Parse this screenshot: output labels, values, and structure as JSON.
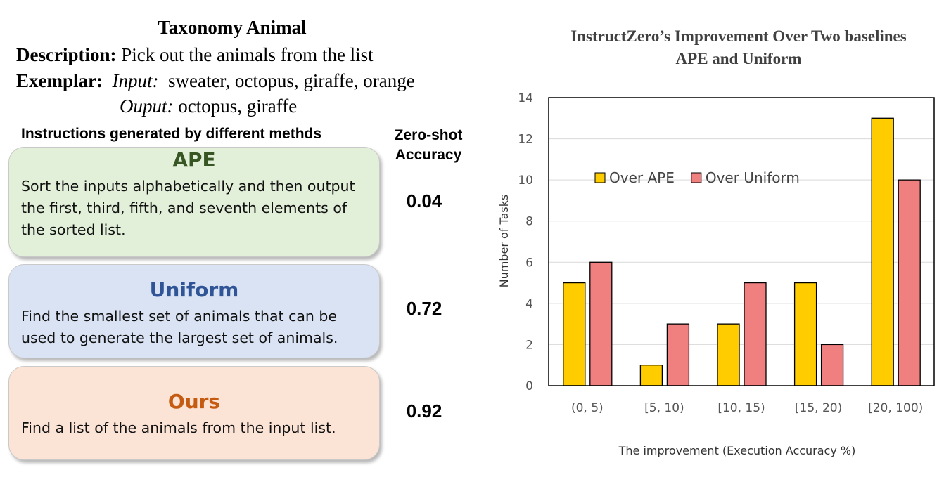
{
  "task": {
    "title": "Taxonomy Animal",
    "description_label": "Description:",
    "description": "Pick out the animals from the list",
    "exemplar_label": "Exemplar:",
    "input_label": "Input:",
    "input": "sweater, octopus, giraffe, orange",
    "output_label": "Ouput:",
    "output": "octopus, giraffe"
  },
  "headers": {
    "instructions": "Instructions generated by different methds",
    "accuracy_line1": "Zero-shot",
    "accuracy_line2": "Accuracy"
  },
  "methods": [
    {
      "name": "APE",
      "instruction": "Sort the inputs alphabetically and then output the first, third, fifth, and seventh elements of the sorted list.",
      "accuracy": "0.04",
      "color": "#375623",
      "background": "#e2efd9"
    },
    {
      "name": "Uniform",
      "instruction": "Find the smallest set of animals that can be used to generate the largest set of animals.",
      "accuracy": "0.72",
      "color": "#2f5597",
      "background": "#dae3f3"
    },
    {
      "name": "Ours",
      "instruction": "Find a list of the animals from the input list.",
      "accuracy": "0.92",
      "color": "#c55a11",
      "background": "#fbe3d6"
    }
  ],
  "chart_data": {
    "type": "bar",
    "title_line1": "InstructZero’s Improvement Over Two baselines",
    "title_line2": "APE and Uniform",
    "xlabel": "The improvement (Execution Accuracy %)",
    "ylabel": "Number of Tasks",
    "categories": [
      "(0, 5)",
      "[5, 10)",
      "[10, 15)",
      "[15, 20)",
      "[20, 100)"
    ],
    "series": [
      {
        "name": "Over APE",
        "values": [
          5,
          1,
          3,
          5,
          13
        ],
        "color": "#ffcc00"
      },
      {
        "name": "Over Uniform",
        "values": [
          6,
          3,
          5,
          2,
          10
        ],
        "color": "#f08080"
      }
    ],
    "ylim": [
      0,
      14
    ],
    "yticks": [
      0,
      2,
      4,
      6,
      8,
      10,
      12,
      14
    ],
    "grid": true,
    "legend_position": "upper-left inside plot"
  }
}
